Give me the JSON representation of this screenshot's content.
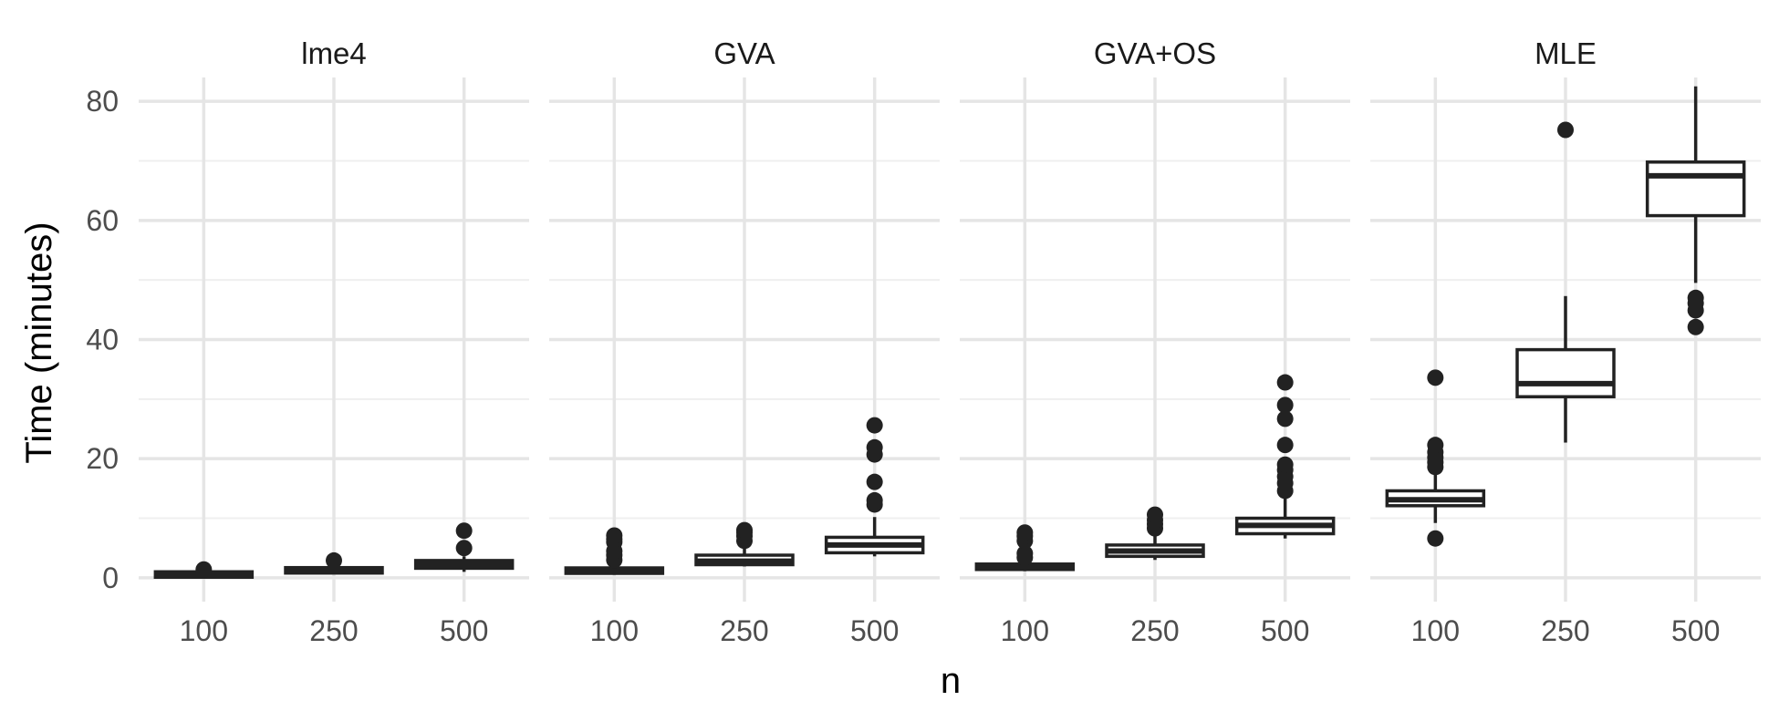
{
  "chart_data": {
    "type": "boxplot",
    "facets": [
      "lme4",
      "GVA",
      "GVA+OS",
      "MLE"
    ],
    "categories": [
      "100",
      "250",
      "500"
    ],
    "xlabel": "n",
    "ylabel": "Time (minutes)",
    "ylim": [
      -4,
      84
    ],
    "yticks": [
      0,
      20,
      40,
      60,
      80
    ],
    "grid": true,
    "colors": {
      "box": "#222222",
      "grid": "#e5e5e5",
      "background": "#ffffff"
    },
    "boxes": [
      {
        "facet": "lme4",
        "category": "100",
        "q1": 0.3,
        "median": 0.5,
        "q3": 0.8,
        "whisker_low": 0.2,
        "whisker_high": 1.0,
        "outliers": [
          1.4
        ]
      },
      {
        "facet": "lme4",
        "category": "250",
        "q1": 0.9,
        "median": 1.2,
        "q3": 1.6,
        "whisker_low": 0.7,
        "whisker_high": 2.0,
        "outliers": [
          2.9
        ]
      },
      {
        "facet": "lme4",
        "category": "500",
        "q1": 1.6,
        "median": 2.2,
        "q3": 2.9,
        "whisker_low": 1.0,
        "whisker_high": 3.6,
        "outliers": [
          5.0,
          7.9
        ]
      },
      {
        "facet": "GVA",
        "category": "100",
        "q1": 0.8,
        "median": 1.1,
        "q3": 1.6,
        "whisker_low": 0.5,
        "whisker_high": 2.4,
        "outliers": [
          3.0,
          3.8,
          4.5,
          6.0,
          6.5,
          7.1
        ]
      },
      {
        "facet": "GVA",
        "category": "250",
        "q1": 2.2,
        "median": 2.8,
        "q3": 3.8,
        "whisker_low": 1.9,
        "whisker_high": 5.0,
        "outliers": [
          6.2,
          7.0,
          7.6,
          8.0
        ]
      },
      {
        "facet": "GVA",
        "category": "500",
        "q1": 4.2,
        "median": 5.5,
        "q3": 6.8,
        "whisker_low": 3.6,
        "whisker_high": 10.2,
        "outliers": [
          12.3,
          13.0,
          16.1,
          20.7,
          21.9,
          25.6
        ]
      },
      {
        "facet": "GVA+OS",
        "category": "100",
        "q1": 1.4,
        "median": 1.8,
        "q3": 2.3,
        "whisker_low": 1.1,
        "whisker_high": 3.0,
        "outliers": [
          3.4,
          4.1,
          6.2,
          7.0,
          7.6
        ]
      },
      {
        "facet": "GVA+OS",
        "category": "250",
        "q1": 3.6,
        "median": 4.5,
        "q3": 5.5,
        "whisker_low": 3.0,
        "whisker_high": 7.0,
        "outliers": [
          8.3,
          9.0,
          9.7,
          10.6
        ]
      },
      {
        "facet": "GVA+OS",
        "category": "500",
        "q1": 7.4,
        "median": 8.8,
        "q3": 10.0,
        "whisker_low": 6.6,
        "whisker_high": 13.5,
        "outliers": [
          14.6,
          15.9,
          17.0,
          18.1,
          19.0,
          22.3,
          26.7,
          29.0,
          32.8
        ]
      },
      {
        "facet": "MLE",
        "category": "100",
        "q1": 12.1,
        "median": 13.1,
        "q3": 14.6,
        "whisker_low": 9.2,
        "whisker_high": 17.7,
        "outliers": [
          6.6,
          18.6,
          19.4,
          20.2,
          21.1,
          22.3,
          33.6
        ]
      },
      {
        "facet": "MLE",
        "category": "250",
        "q1": 30.4,
        "median": 32.6,
        "q3": 38.3,
        "whisker_low": 22.7,
        "whisker_high": 47.3,
        "outliers": [
          75.2
        ]
      },
      {
        "facet": "MLE",
        "category": "500",
        "q1": 60.8,
        "median": 67.5,
        "q3": 69.8,
        "whisker_low": 49.5,
        "whisker_high": 82.5,
        "outliers": [
          42.1,
          44.9,
          46.1,
          47.0
        ]
      }
    ]
  }
}
